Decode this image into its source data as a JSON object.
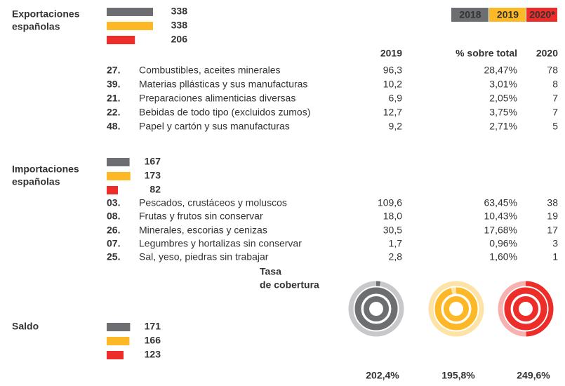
{
  "legend": [
    {
      "label": "2018",
      "color": "#6d6e71"
    },
    {
      "label": "2019",
      "color": "#fdb827"
    },
    {
      "label": "2020*",
      "color": "#ed2d2a"
    }
  ],
  "exports": {
    "title": [
      "Exportaciones",
      "españolas"
    ],
    "values": [
      338,
      338,
      206
    ]
  },
  "table_header": [
    "2019",
    "% sobre total",
    "2020"
  ],
  "export_rows": [
    [
      "27.",
      "Combustibles, aceites minerales",
      "96,3",
      "28,47%",
      "78"
    ],
    [
      "39.",
      "Materias  pllásticas y sus manufacturas",
      "10,2",
      "3,01%",
      "8"
    ],
    [
      "21.",
      "Preparaciones alimenticias diversas",
      "6,9",
      "2,05%",
      "7"
    ],
    [
      "22.",
      "Bebidas de todo tipo (excluidos zumos)",
      "12,7",
      "3,75%",
      "7"
    ],
    [
      "48.",
      "Papel y cartón y sus manufacturas",
      "9,2",
      "2,71%",
      "5"
    ]
  ],
  "imports": {
    "title": [
      "Importaciones",
      "españolas"
    ],
    "values": [
      167,
      173,
      82
    ]
  },
  "import_rows": [
    [
      "03.",
      "Pescados, crustáceos y moluscos",
      "109,6",
      "63,45%",
      "38"
    ],
    [
      "08.",
      "Frutas y frutos sin conservar",
      "18,0",
      "10,43%",
      "19"
    ],
    [
      "26.",
      "Minerales, escorias y cenizas",
      "30,5",
      "17,68%",
      "17"
    ],
    [
      "07.",
      "Legumbres y hortalizas sin conservar",
      "1,7",
      "0,96%",
      "3"
    ],
    [
      "25.",
      "Sal, yeso, piedras sin trabajar",
      "2,8",
      "1,60%",
      "1"
    ]
  ],
  "balance": {
    "title": [
      "Saldo"
    ],
    "values": [
      171,
      166,
      123
    ]
  },
  "coverage": {
    "title": [
      "Tasa",
      "de cobertura"
    ],
    "values": [
      {
        "value": 202.4,
        "label": "202,4%"
      },
      {
        "value": 195.8,
        "label": "195,8%"
      },
      {
        "value": 249.6,
        "label": "249,6%"
      }
    ]
  }
}
